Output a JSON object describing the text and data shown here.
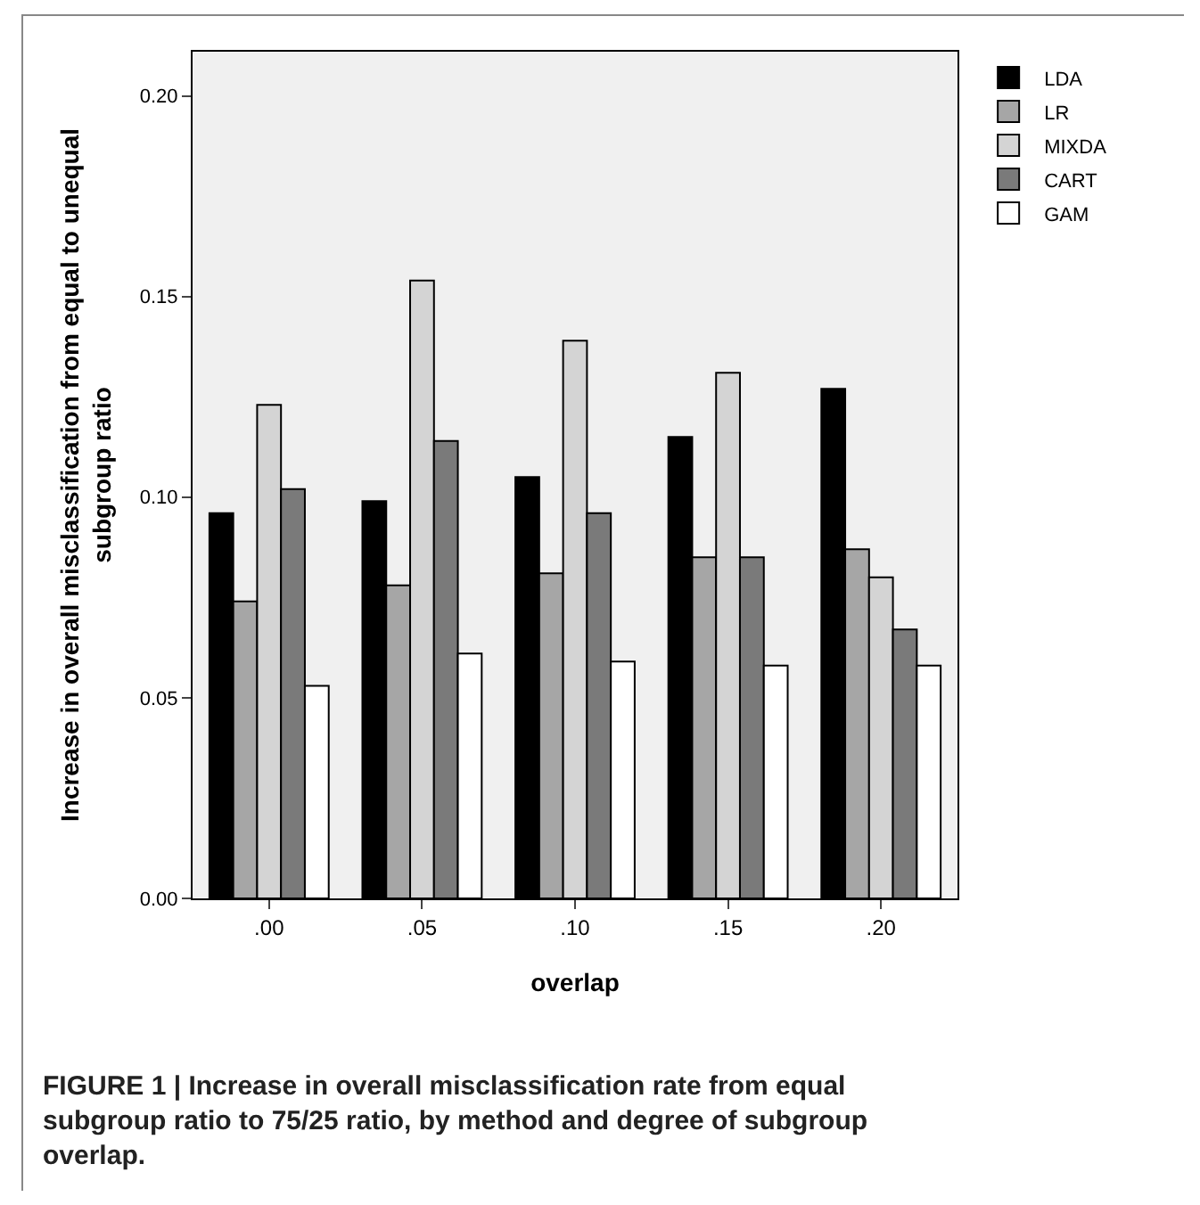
{
  "chart_data": {
    "type": "bar",
    "xlabel": "overlap",
    "ylabel": "Increase in overall misclassification from equal to unequal\nsubgroup ratio",
    "categories": [
      ".00",
      ".05",
      ".10",
      ".15",
      ".20"
    ],
    "series": [
      {
        "name": "LDA",
        "color": "#000000",
        "values": [
          0.096,
          0.099,
          0.105,
          0.115,
          0.127
        ]
      },
      {
        "name": "LR",
        "color": "#a6a6a6",
        "values": [
          0.074,
          0.078,
          0.081,
          0.085,
          0.087
        ]
      },
      {
        "name": "MIXDA",
        "color": "#d4d4d4",
        "values": [
          0.123,
          0.154,
          0.139,
          0.131,
          0.08
        ]
      },
      {
        "name": "CART",
        "color": "#7a7a7a",
        "values": [
          0.102,
          0.114,
          0.096,
          0.085,
          0.067
        ]
      },
      {
        "name": "GAM",
        "color": "#ffffff",
        "values": [
          0.053,
          0.061,
          0.059,
          0.058,
          0.058
        ]
      }
    ],
    "ylim": [
      0,
      0.211
    ],
    "yticks": [
      {
        "value": 0,
        "label": "0.00"
      },
      {
        "value": 0.05,
        "label": "0.05"
      },
      {
        "value": 0.1,
        "label": "0.10"
      },
      {
        "value": 0.15,
        "label": "0.15"
      },
      {
        "value": 0.2,
        "label": "0.20"
      }
    ],
    "grid": false,
    "legend": "top right",
    "annotations": [
      "FIGURE 1 | Increase in overall misclassification rate from equal\nsubgroup ratio to 75/25 ratio, by method and degree of subgroup\noverlap."
    ]
  }
}
